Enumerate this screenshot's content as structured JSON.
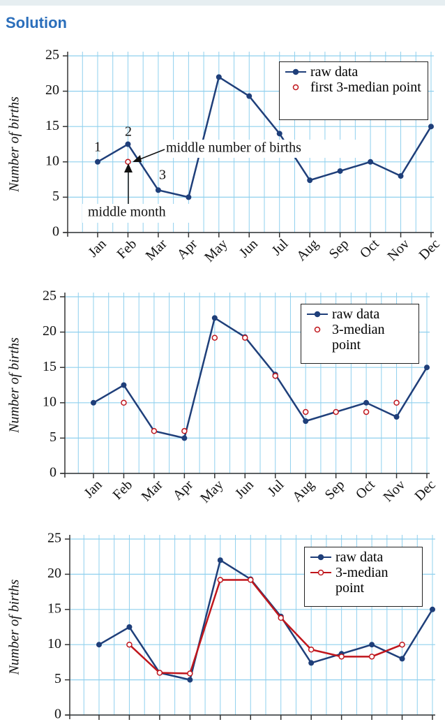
{
  "heading": "Solution",
  "chart_data": [
    {
      "type": "line",
      "ylabel": "Number of births",
      "categories": [
        "Jan",
        "Feb",
        "Mar",
        "Apr",
        "May",
        "Jun",
        "Jul",
        "Aug",
        "Sep",
        "Oct",
        "Nov",
        "Dec"
      ],
      "series": [
        {
          "name": "raw data",
          "color": "#1f3f7a",
          "marker": "filled",
          "line": true,
          "values": [
            10,
            12.5,
            6,
            5,
            22,
            19.3,
            14,
            7.4,
            8.7,
            10,
            8,
            15
          ]
        },
        {
          "name": "first 3-median point",
          "color": "#c0161c",
          "marker": "hollow",
          "line": false,
          "values": [
            null,
            10,
            null,
            null,
            null,
            null,
            null,
            null,
            null,
            null,
            null,
            null
          ]
        }
      ],
      "ylim": [
        0,
        25
      ],
      "yticks": [
        0,
        5,
        10,
        15,
        20,
        25
      ],
      "grid": true,
      "annotations": [
        "1",
        "2",
        "3",
        "middle number of births",
        "middle month"
      ]
    },
    {
      "type": "line",
      "ylabel": "Number of births",
      "categories": [
        "Jan",
        "Feb",
        "Mar",
        "Apr",
        "May",
        "Jun",
        "Jul",
        "Aug",
        "Sep",
        "Oct",
        "Nov",
        "Dec"
      ],
      "series": [
        {
          "name": "raw data",
          "color": "#1f3f7a",
          "marker": "filled",
          "line": true,
          "values": [
            10,
            12.5,
            6,
            5,
            22,
            19.3,
            14,
            7.4,
            8.7,
            10,
            8,
            15
          ]
        },
        {
          "name": "3-median point",
          "color": "#c0161c",
          "marker": "hollow",
          "line": false,
          "values": [
            null,
            10,
            6,
            6,
            19.2,
            19.2,
            13.8,
            8.7,
            8.7,
            8.7,
            10,
            null
          ]
        }
      ],
      "ylim": [
        0,
        25
      ],
      "yticks": [
        0,
        5,
        10,
        15,
        20,
        25
      ],
      "grid": true
    },
    {
      "type": "line",
      "ylabel": "Number of births",
      "categories": [
        null,
        null,
        null,
        null,
        null,
        null,
        null,
        null,
        null,
        null,
        null,
        null
      ],
      "series": [
        {
          "name": "raw data",
          "color": "#1f3f7a",
          "marker": "filled",
          "line": true,
          "values": [
            10,
            12.5,
            6,
            5,
            22,
            19.3,
            14,
            7.4,
            8.7,
            10,
            8,
            15
          ]
        },
        {
          "name": "3-median point",
          "color": "#c0161c",
          "marker": "hollow",
          "line": true,
          "values": [
            null,
            10,
            6,
            5.9,
            19.2,
            19.2,
            13.8,
            9.3,
            8.3,
            8.3,
            10,
            null
          ]
        }
      ],
      "ylim": [
        0,
        25
      ],
      "yticks": [
        0,
        5,
        10,
        15,
        20,
        25
      ],
      "grid": true
    }
  ]
}
